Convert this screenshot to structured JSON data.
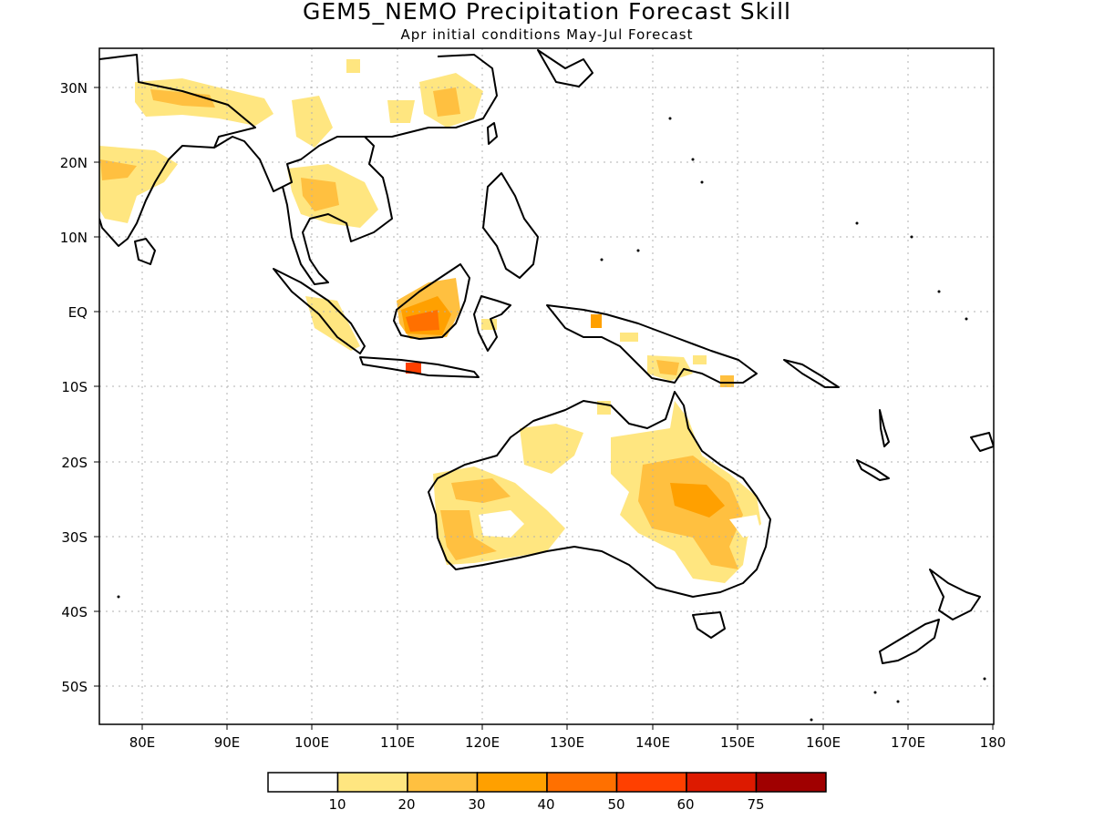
{
  "title": "GEM5_NEMO Precipitation Forecast Skill",
  "subtitle": "Apr initial conditions  May-Jul Forecast",
  "axes": {
    "lat_labels": [
      "30N",
      "20N",
      "10N",
      "EQ",
      "10S",
      "20S",
      "30S",
      "40S",
      "50S"
    ],
    "lon_labels": [
      "80E",
      "90E",
      "100E",
      "110E",
      "120E",
      "130E",
      "140E",
      "150E",
      "160E",
      "170E",
      "180"
    ],
    "lat_range": [
      -55,
      35
    ],
    "lon_range": [
      75,
      180
    ],
    "grid": true
  },
  "colorbar": {
    "labels": [
      "10",
      "20",
      "30",
      "40",
      "50",
      "60",
      "75"
    ],
    "colors": [
      "#ffffff",
      "#ffe680",
      "#ffc040",
      "#ffa000",
      "#ff7000",
      "#ff4000",
      "#dd1a00",
      "#a00000"
    ]
  },
  "map": {
    "region": "Indian Ocean / Maritime Continent / Australia",
    "shading_colors": {
      "c1": "#ffe680",
      "c2": "#ffc040",
      "c3": "#ffa000",
      "c4": "#ff7000",
      "c5": "#ff4000"
    }
  }
}
